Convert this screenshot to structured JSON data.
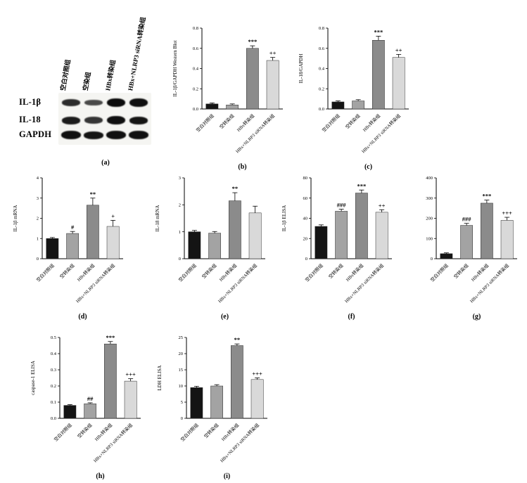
{
  "bar_colors": [
    "#141414",
    "#a3a3a3",
    "#8b8b8b",
    "#d9d9d9"
  ],
  "blot": {
    "label": "(a)",
    "lanes": [
      "空白对照组",
      "空染组",
      "HBx转染组",
      "HBx+NLRP3 siRNA转染组"
    ],
    "rows": [
      {
        "name": "IL-1β",
        "bands": [
          0.7,
          0.4,
          1.0,
          0.95
        ]
      },
      {
        "name": "IL-18",
        "bands": [
          0.85,
          0.6,
          0.95,
          0.9
        ]
      },
      {
        "name": "GAPDH",
        "bands": [
          0.95,
          0.9,
          0.95,
          0.95
        ]
      }
    ]
  },
  "chart_data": [
    {
      "id": "b",
      "type": "bar",
      "label": "(b)",
      "ylabel": "IL-1β/GAPDH Western Blot",
      "ylim": [
        0,
        0.8
      ],
      "yticks": [
        "0.0",
        "0.2",
        "0.4",
        "0.6",
        "0.8"
      ],
      "categories": [
        "空白对照组",
        "空转染组",
        "HBx转染组",
        "HBx+NLRP3 siRNA转染组"
      ],
      "values": [
        0.05,
        0.04,
        0.6,
        0.48
      ],
      "errors": [
        0.01,
        0.01,
        0.025,
        0.03
      ],
      "annotations": [
        "",
        "",
        "***",
        "++"
      ]
    },
    {
      "id": "c",
      "type": "bar",
      "label": "(c)",
      "ylabel": "IL-18/GAPDH",
      "ylim": [
        0,
        0.8
      ],
      "yticks": [
        "0.0",
        "0.2",
        "0.4",
        "0.6",
        "0.8"
      ],
      "categories": [
        "空白对照组",
        "空转染组",
        "HBx转染组",
        "HBx+NLRP3 siRNA转染组"
      ],
      "values": [
        0.07,
        0.08,
        0.68,
        0.51
      ],
      "errors": [
        0.01,
        0.012,
        0.04,
        0.03
      ],
      "annotations": [
        "",
        "",
        "***",
        "++"
      ]
    },
    {
      "id": "d",
      "type": "bar",
      "label": "(d)",
      "ylabel": "IL-1β mRNA",
      "ylim": [
        0,
        4
      ],
      "yticks": [
        "0",
        "1",
        "2",
        "3",
        "4"
      ],
      "categories": [
        "空白对照组",
        "空转染组",
        "HBx转染组",
        "HBx+NLRP3 siRNA转染组"
      ],
      "values": [
        1.0,
        1.25,
        2.65,
        1.6
      ],
      "errors": [
        0.05,
        0.1,
        0.35,
        0.3
      ],
      "annotations": [
        "",
        "#",
        "**",
        "+"
      ]
    },
    {
      "id": "e",
      "type": "bar",
      "label": "(e)",
      "ylabel": "IL-18 mRNA",
      "ylim": [
        0,
        3
      ],
      "yticks": [
        "0",
        "1",
        "2",
        "3"
      ],
      "categories": [
        "空白对照组",
        "空转染组",
        "HBx转染组",
        "HBx+NLRP3 siRNA转染组"
      ],
      "values": [
        1.0,
        0.95,
        2.15,
        1.7
      ],
      "errors": [
        0.05,
        0.06,
        0.3,
        0.25
      ],
      "annotations": [
        "",
        "",
        "**",
        ""
      ]
    },
    {
      "id": "f",
      "type": "bar",
      "label": "(f)",
      "ylabel": "IL-1β ELISA",
      "ylim": [
        0,
        80
      ],
      "yticks": [
        "0",
        "20",
        "40",
        "60",
        "80"
      ],
      "categories": [
        "空白对照组",
        "空转染组",
        "HBx转染组",
        "HBx+NLRP3 siRNA转染组"
      ],
      "values": [
        32,
        47,
        65,
        46
      ],
      "errors": [
        1.5,
        2,
        3,
        2.5
      ],
      "annotations": [
        "",
        "###",
        "***",
        "++"
      ]
    },
    {
      "id": "g",
      "type": "bar",
      "label": "(g)",
      "ylabel": "",
      "ylim": [
        0,
        400
      ],
      "yticks": [
        "0",
        "100",
        "200",
        "300",
        "400"
      ],
      "categories": [
        "空白对照组",
        "空转染组",
        "HBx转染组",
        "HBx+NLRP3 siRNA转染组"
      ],
      "values": [
        25,
        165,
        275,
        190
      ],
      "errors": [
        4,
        10,
        15,
        15
      ],
      "annotations": [
        "",
        "###",
        "***",
        "+++"
      ]
    },
    {
      "id": "h",
      "type": "bar",
      "label": "(h)",
      "ylabel": "caspase-1 ELISA",
      "ylim": [
        0,
        0.5
      ],
      "yticks": [
        "0.0",
        "0.1",
        "0.2",
        "0.3",
        "0.4",
        "0.5"
      ],
      "categories": [
        "空白对照组",
        "空转染组",
        "HBx转染组",
        "HBx+NLRP3 siRNA转染组"
      ],
      "values": [
        0.08,
        0.09,
        0.46,
        0.23
      ],
      "errors": [
        0.005,
        0.006,
        0.015,
        0.015
      ],
      "annotations": [
        "",
        "##",
        "***",
        "+++"
      ]
    },
    {
      "id": "i",
      "type": "bar",
      "label": "(i)",
      "ylabel": "LDH ELISA",
      "ylim": [
        0,
        25
      ],
      "yticks": [
        "0",
        "5",
        "10",
        "15",
        "20",
        "25"
      ],
      "categories": [
        "空白对照组",
        "空转染组",
        "HBx转染组",
        "HBx+NLRP3 siRNA转染组"
      ],
      "values": [
        9.5,
        10,
        22.5,
        12
      ],
      "errors": [
        0.4,
        0.4,
        0.5,
        0.5
      ],
      "annotations": [
        "",
        "",
        "**",
        "+++"
      ]
    }
  ]
}
